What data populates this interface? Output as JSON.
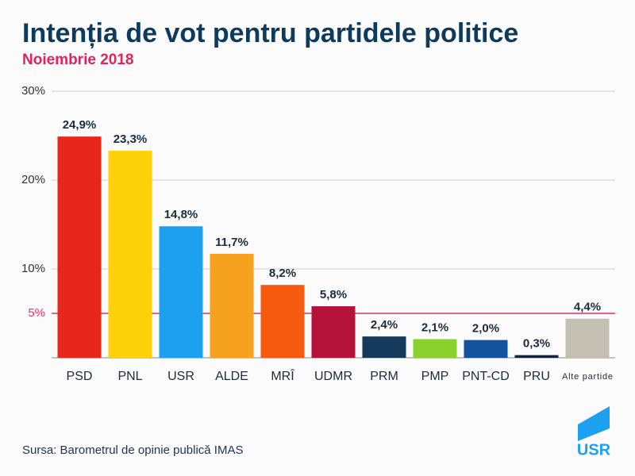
{
  "chart_data": {
    "type": "bar",
    "title": "Intenția de vot pentru partidele politice",
    "subtitle": "Noiembrie 2018",
    "categories": [
      "PSD",
      "PNL",
      "USR",
      "ALDE",
      "MRÎ",
      "UDMR",
      "PRM",
      "PMP",
      "PNT-CD",
      "PRU",
      "Alte partide"
    ],
    "values": [
      24.9,
      23.3,
      14.8,
      11.7,
      8.2,
      5.8,
      2.4,
      2.1,
      2.0,
      0.3,
      4.4
    ],
    "value_labels": [
      "24,9%",
      "23,3%",
      "14,8%",
      "11,7%",
      "8,2%",
      "5,8%",
      "2,4%",
      "2,1%",
      "2,0%",
      "0,3%",
      "4,4%"
    ],
    "colors": [
      "#e8261b",
      "#fdd20a",
      "#1ea0f0",
      "#f6a21e",
      "#f55a0f",
      "#b5123a",
      "#163a5a",
      "#8bd12d",
      "#13529c",
      "#14223a",
      "#c4bfb3"
    ],
    "ylim": [
      0,
      30
    ],
    "yticks": [
      {
        "value": 30,
        "label": "30%"
      },
      {
        "value": 20,
        "label": "20%"
      },
      {
        "value": 10,
        "label": "10%"
      },
      {
        "value": 5,
        "label": "5%"
      }
    ],
    "ytick_colors": [
      "#cfcfcf",
      "#cfcfcf",
      "#cfcfcf",
      "#d6336c"
    ],
    "grid": true,
    "source": "Sursa: Barometrul de opinie publică IMAS",
    "logo": "USR"
  }
}
